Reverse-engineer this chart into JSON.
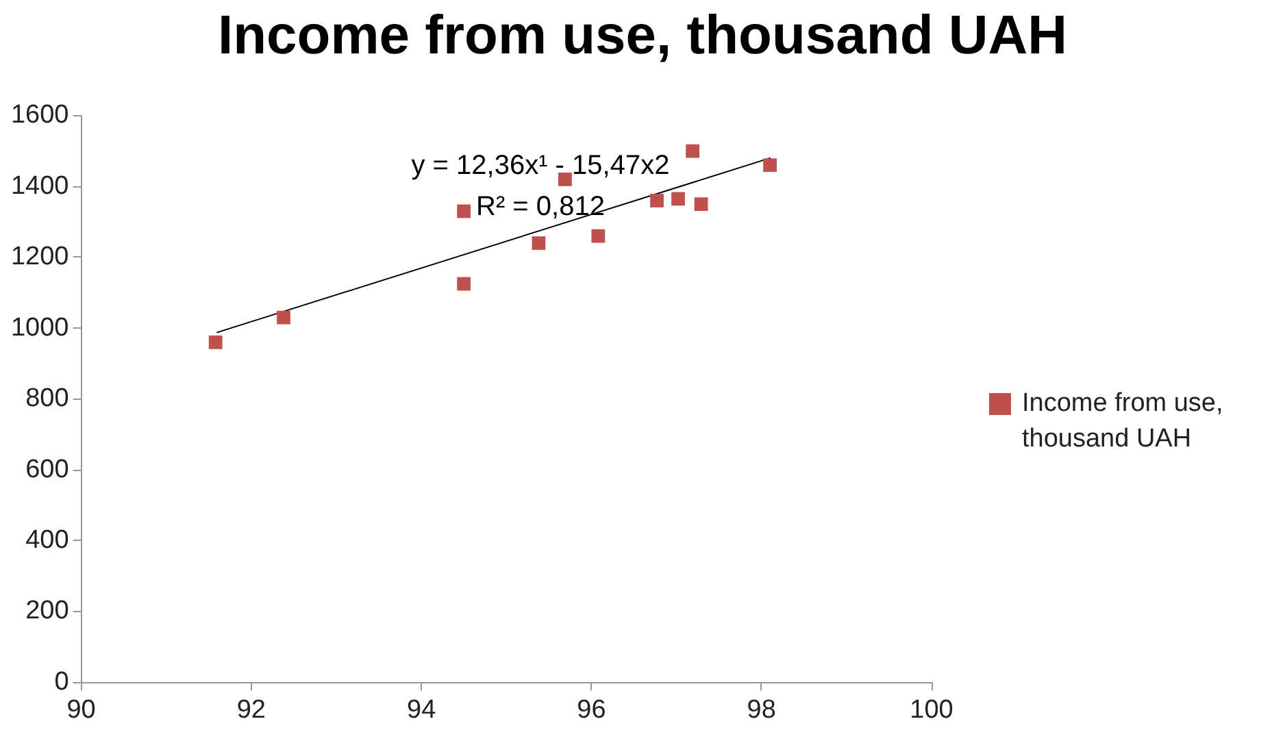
{
  "chart_data": {
    "type": "scatter",
    "title": "Income from use, thousand UAH",
    "series": [
      {
        "name": "Income from use, thousand UAH",
        "color": "#c0504d",
        "marker": "square",
        "x": [
          91.58,
          92.38,
          94.5,
          94.5,
          95.38,
          95.69,
          96.08,
          96.77,
          97.02,
          97.19,
          97.29,
          98.1
        ],
        "values": [
          960,
          1030,
          1125,
          1330,
          1240,
          1420,
          1260,
          1360,
          1365,
          1500,
          1350,
          1460
        ]
      },
      {
        "type": "line",
        "color": "#000000",
        "marker": "none",
        "x": [
          91.6,
          98.1
        ],
        "values": [
          988,
          1480
        ]
      }
    ],
    "annotations": [
      "y = 12,36x¹ - 15,47x2",
      "R² = 0,812"
    ],
    "xlim": [
      90,
      100
    ],
    "xticks": [
      90,
      92,
      94,
      96,
      98,
      100
    ],
    "ylim": [
      0,
      1600
    ],
    "yticks": [
      0,
      200,
      400,
      600,
      800,
      1000,
      1200,
      1400,
      1600
    ],
    "grid": false,
    "legend": "right"
  }
}
